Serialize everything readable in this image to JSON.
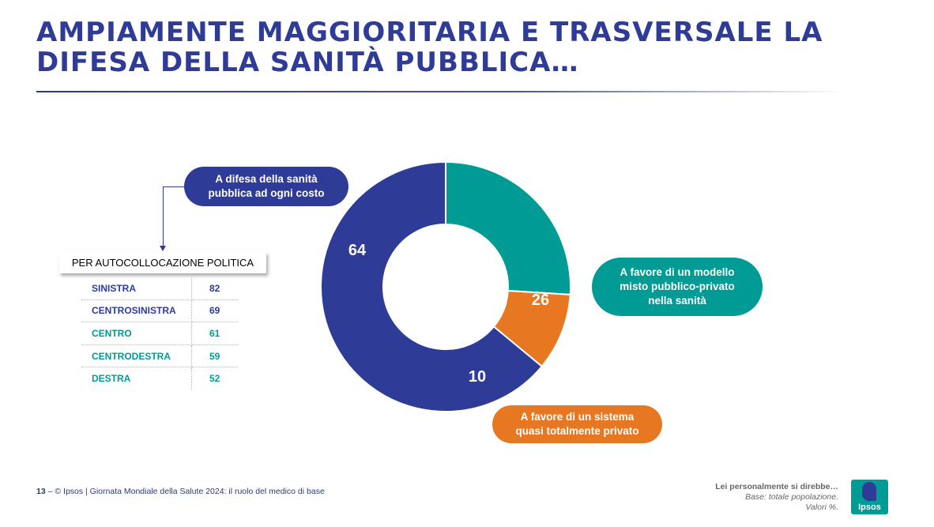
{
  "title": {
    "line1": "AMPIAMENTE MAGGIORITARIA E TRASVERSALE LA",
    "line2": "DIFESA DELLA SANITÀ PUBBLICA…"
  },
  "chart_data": {
    "type": "pie",
    "subtype": "donut",
    "slices": [
      {
        "label": "A difesa della sanità pubblica ad ogni costo",
        "value": 64,
        "color": "#2e3b97"
      },
      {
        "label": "A favore di un modello misto pubblico-privato nella sanità",
        "value": 26,
        "color": "#009b95"
      },
      {
        "label": "A favore di un sistema quasi totalmente privato",
        "value": 10,
        "color": "#e87722"
      }
    ],
    "units": "%"
  },
  "callouts": {
    "public": "A difesa della sanità\npubblica ad ogni costo",
    "mixed": "A favore di un modello\nmisto pubblico-privato\nnella sanità",
    "private": "A favore di un sistema\nquasi totalmente privato"
  },
  "breakdown": {
    "title": "PER AUTOCOLLOCAZIONE POLITICA",
    "rows": [
      {
        "label": "SINISTRA",
        "value": "82",
        "color": "blue"
      },
      {
        "label": "CENTROSINISTRA",
        "value": "69",
        "color": "blue"
      },
      {
        "label": "CENTRO",
        "value": "61",
        "color": "teal"
      },
      {
        "label": "CENTRODESTRA",
        "value": "59",
        "color": "teal"
      },
      {
        "label": "DESTRA",
        "value": "52",
        "color": "teal"
      }
    ]
  },
  "footer": {
    "page": "13",
    "sep": " – ",
    "text": "© Ipsos | Giornata Mondiale della Salute 2024: il ruolo del medico di base"
  },
  "note": {
    "question": "Lei personalmente si direbbe…",
    "base": "Base: totale popolazione.",
    "units": "Valori %."
  },
  "logo": {
    "text": "Ipsos"
  },
  "colors": {
    "blue": "#2e3b97",
    "teal": "#009b95",
    "orange": "#e87722"
  }
}
